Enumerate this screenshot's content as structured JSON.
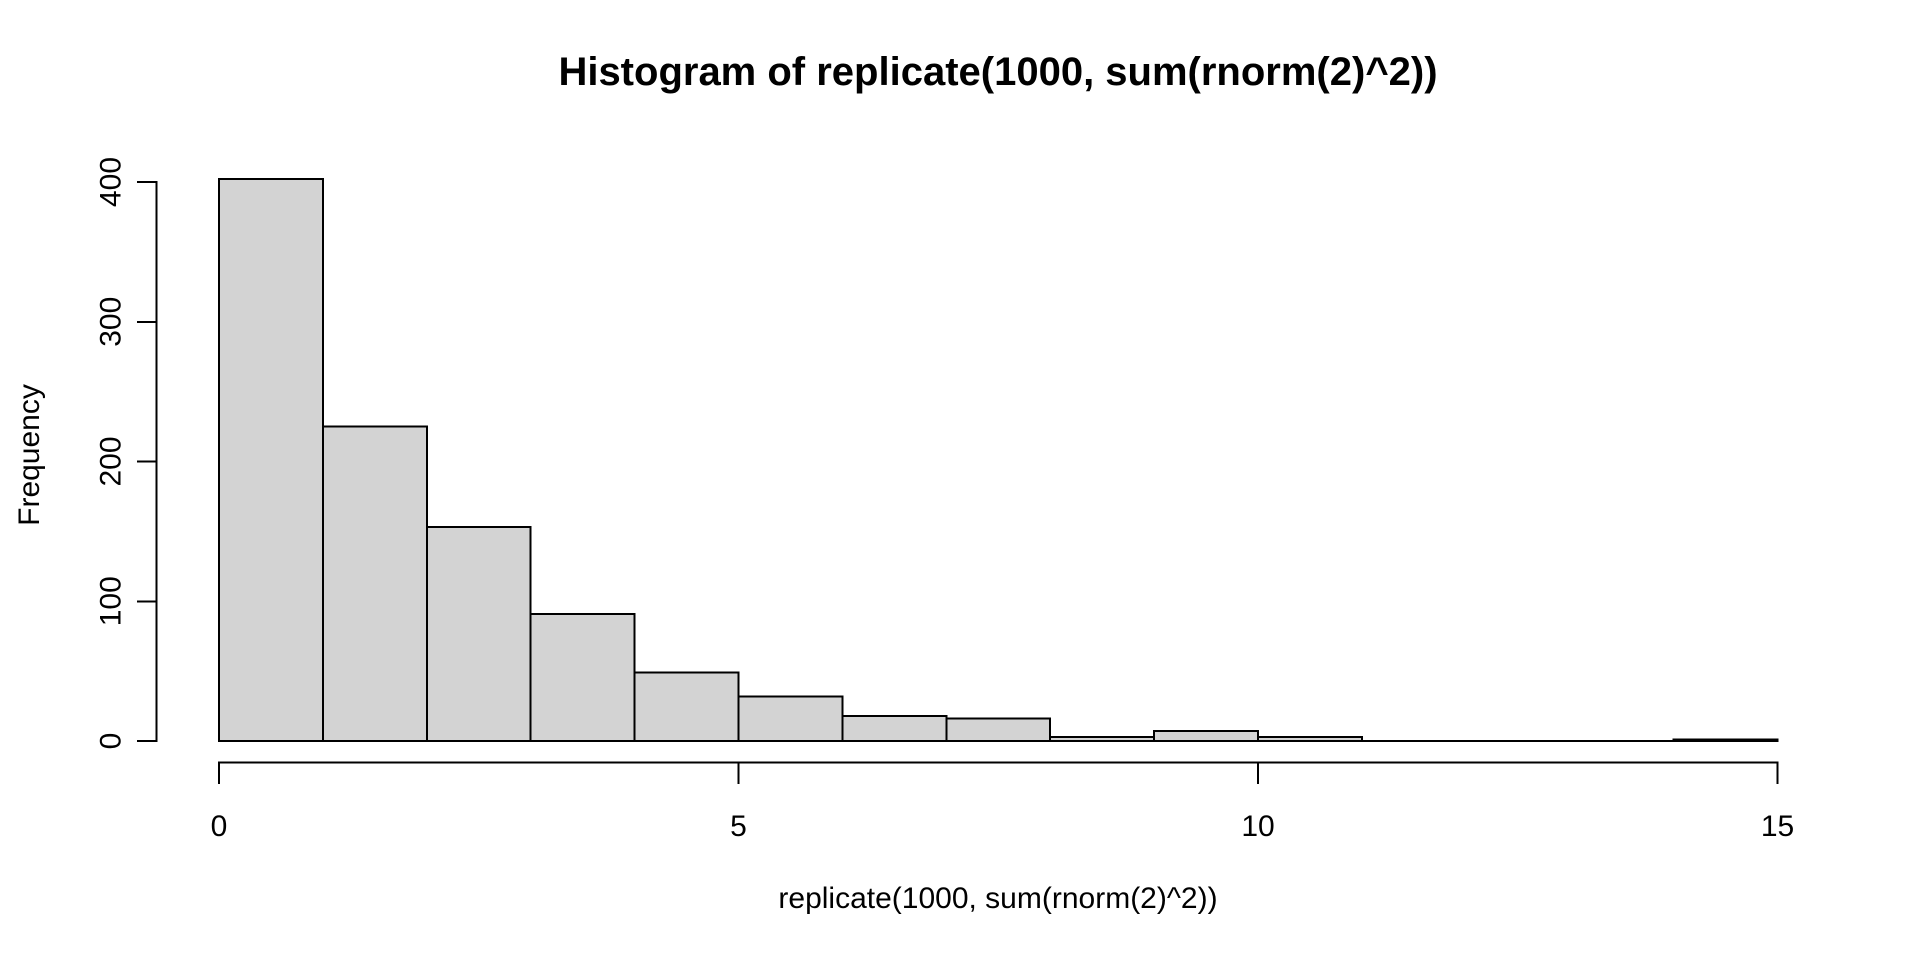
{
  "chart_data": {
    "type": "bar",
    "variant": "histogram",
    "title": "Histogram of replicate(1000, sum(rnorm(2)^2))",
    "xlabel": "replicate(1000, sum(rnorm(2)^2))",
    "ylabel": "Frequency",
    "bin_edges": [
      0,
      1,
      2,
      3,
      4,
      5,
      6,
      7,
      8,
      9,
      10,
      11,
      12,
      13,
      14,
      15
    ],
    "values": [
      402,
      225,
      153,
      91,
      49,
      32,
      18,
      16,
      3,
      7,
      3,
      0,
      0,
      0,
      1
    ],
    "x_tick_values": [
      0,
      5,
      10,
      15
    ],
    "x_tick_labels": [
      "0",
      "5",
      "10",
      "15"
    ],
    "y_tick_values": [
      0,
      100,
      200,
      300,
      400
    ],
    "y_tick_labels": [
      "0",
      "100",
      "200",
      "300",
      "400"
    ],
    "xlim": [
      0,
      15
    ],
    "ylim": [
      0,
      400
    ],
    "grid": false,
    "legend": false,
    "colors": {
      "bar_fill": "#d3d3d3",
      "bar_stroke": "#000000",
      "axis": "#000000",
      "text": "#000000",
      "background": "#ffffff"
    }
  }
}
